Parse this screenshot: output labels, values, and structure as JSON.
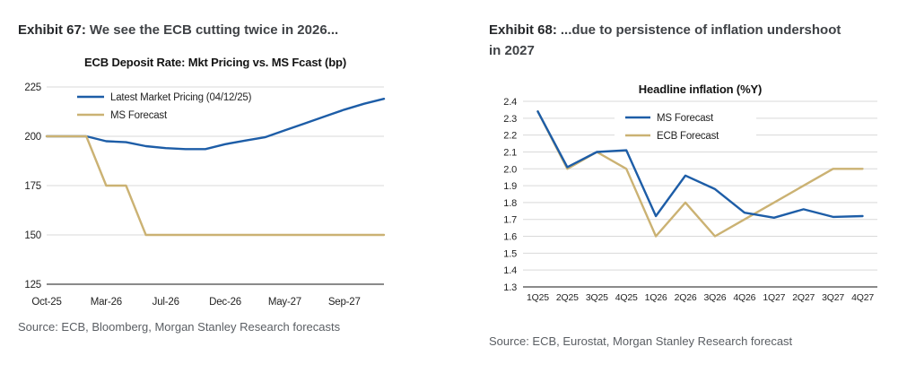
{
  "style": {
    "background": "#ffffff",
    "grid_color": "#d9d9d9",
    "axis_color": "#8a8a8a",
    "tick_text_color": "#232323",
    "source_text_color": "#5a5e63",
    "ms_blue": "#1d5da7",
    "ms_tan": "#cbb273"
  },
  "chart_data": [
    {
      "id": "ecb-deposit-rate",
      "type": "line",
      "exhibit_label": "Exhibit 67:",
      "exhibit_title": "We see the ECB cutting twice in 2026...",
      "title": "ECB Deposit Rate: Mkt Pricing vs. MS Fcast (bp)",
      "ylim": [
        125,
        225
      ],
      "y_ticks": [
        "225",
        "200",
        "175",
        "150",
        "125"
      ],
      "grid": true,
      "legend_position": "top-left-inside",
      "x_mode": "edge",
      "x_point_count": 18,
      "x_tick_positions": [
        0,
        3,
        6,
        9,
        12,
        15
      ],
      "x_tick_labels": [
        "Oct-25",
        "Mar-26",
        "Jul-26",
        "Dec-26",
        "May-27",
        "Sep-27"
      ],
      "series": [
        {
          "name": "Latest Market Pricing (04/12/25)",
          "color": "#1d5da7",
          "values": [
            200,
            200,
            200,
            197.5,
            197,
            195,
            194,
            193.5,
            193.5,
            196,
            197.8,
            199.5,
            203,
            206.5,
            210,
            213.5,
            216.5,
            219
          ]
        },
        {
          "name": "MS Forecast",
          "color": "#cbb273",
          "values": [
            200,
            200,
            200,
            175,
            175,
            150,
            150,
            150,
            150,
            150,
            150,
            150,
            150,
            150,
            150,
            150,
            150,
            150
          ]
        }
      ],
      "source": "Source: ECB, Bloomberg, Morgan Stanley Research forecasts"
    },
    {
      "id": "headline-inflation",
      "type": "line",
      "exhibit_label": "Exhibit 68:",
      "exhibit_title": "...due to persistence of inflation undershoot in 2027",
      "title": "Headline inflation (%Y)",
      "ylim": [
        1.3,
        2.4
      ],
      "y_ticks": [
        "2.4",
        "2.3",
        "2.2",
        "2.1",
        "2.0",
        "1.9",
        "1.8",
        "1.7",
        "1.6",
        "1.5",
        "1.4",
        "1.3"
      ],
      "grid": true,
      "legend_position": "top-center-inside",
      "x_mode": "category",
      "categories": [
        "1Q25",
        "2Q25",
        "3Q25",
        "4Q25",
        "1Q26",
        "2Q26",
        "3Q26",
        "4Q26",
        "1Q27",
        "2Q27",
        "3Q27",
        "4Q27"
      ],
      "series": [
        {
          "name": "MS Forecast",
          "color": "#1d5da7",
          "values": [
            2.34,
            2.01,
            2.1,
            2.11,
            1.72,
            1.96,
            1.88,
            1.74,
            1.71,
            1.76,
            1.715,
            1.72
          ]
        },
        {
          "name": "ECB Forecast",
          "color": "#cbb273",
          "values": [
            2.34,
            2.0,
            2.1,
            2.0,
            1.6,
            1.8,
            1.6,
            1.7,
            1.8,
            1.9,
            2.0,
            2.0
          ]
        }
      ],
      "source": "Source: ECB, Eurostat, Morgan Stanley Research forecast"
    }
  ]
}
